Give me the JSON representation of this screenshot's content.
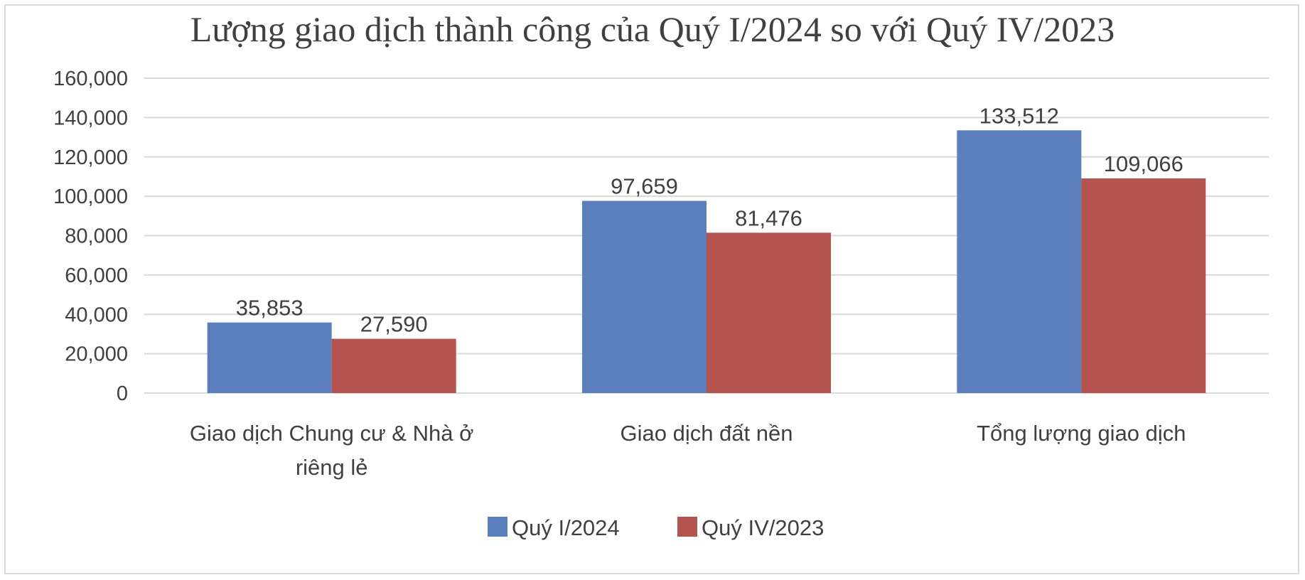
{
  "chart_data": {
    "type": "bar",
    "title": "Lượng giao dịch thành công của Quý I/2024 so với Quý IV/2023",
    "categories": [
      [
        "Giao dịch Chung cư & Nhà ở",
        "riêng lẻ"
      ],
      [
        "Giao dịch đất nền"
      ],
      [
        "Tổng lượng giao dịch"
      ]
    ],
    "series": [
      {
        "name": "Quý I/2024",
        "color": "#5b7fbc",
        "values": [
          35853,
          97659,
          133512
        ],
        "labels": [
          "35,853",
          "97,659",
          "133,512"
        ]
      },
      {
        "name": "Quý IV/2023",
        "color": "#b5534f",
        "values": [
          27590,
          81476,
          109066
        ],
        "labels": [
          "27,590",
          "81,476",
          "109,066"
        ]
      }
    ],
    "ylim": [
      0,
      160000
    ],
    "yticks": [
      0,
      20000,
      40000,
      60000,
      80000,
      100000,
      120000,
      140000,
      160000
    ],
    "ytick_labels": [
      "0",
      "20,000",
      "40,000",
      "60,000",
      "80,000",
      "100,000",
      "120,000",
      "140,000",
      "160,000"
    ],
    "grid": true,
    "legend_position": "bottom"
  }
}
